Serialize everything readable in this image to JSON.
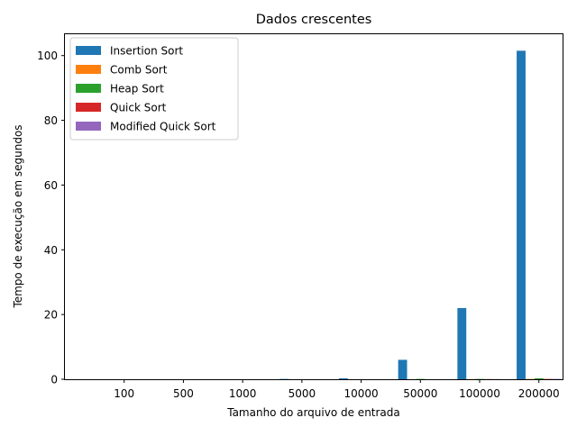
{
  "chart_data": {
    "type": "bar",
    "title": "Dados crescentes",
    "xlabel": "Tamanho do arquivo de entrada",
    "ylabel": "Tempo de execução em segundos",
    "categories": [
      "100",
      "500",
      "1000",
      "5000",
      "10000",
      "50000",
      "100000",
      "200000"
    ],
    "ylim": [
      0,
      106.6
    ],
    "yticks": [
      0,
      20,
      40,
      60,
      80,
      100
    ],
    "grid": false,
    "legend_position": "top-left",
    "series": [
      {
        "name": "Insertion Sort",
        "color": "#1f77b4",
        "values": [
          0.0,
          0.0,
          0.0,
          0.1,
          0.3,
          6.0,
          22.0,
          101.5
        ]
      },
      {
        "name": "Comb Sort",
        "color": "#ff7f0e",
        "values": [
          0.0,
          0.0,
          0.0,
          0.0,
          0.0,
          0.0,
          0.05,
          0.1
        ]
      },
      {
        "name": "Heap Sort",
        "color": "#2ca02c",
        "values": [
          0.0,
          0.0,
          0.0,
          0.0,
          0.0,
          0.1,
          0.1,
          0.3
        ]
      },
      {
        "name": "Quick Sort",
        "color": "#d62728",
        "values": [
          0.0,
          0.0,
          0.0,
          0.0,
          0.0,
          0.0,
          0.05,
          0.1
        ]
      },
      {
        "name": "Modified Quick Sort",
        "color": "#9467bd",
        "values": [
          0.0,
          0.0,
          0.0,
          0.0,
          0.0,
          0.0,
          0.05,
          0.1
        ]
      }
    ]
  }
}
